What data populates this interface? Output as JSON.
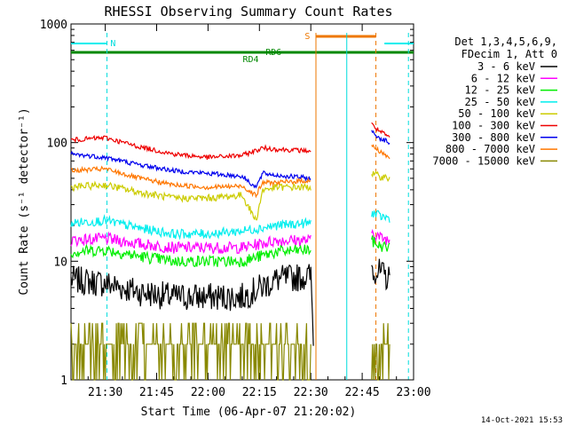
{
  "chart_data": {
    "type": "line",
    "title": "RHESSI Observing Summary Count Rates",
    "xlabel": "Start Time (06-Apr-07 21:20:02)",
    "ylabel": "Count Rate (s⁻¹ detector⁻¹)",
    "yscale": "log",
    "ylim": [
      1,
      1000
    ],
    "xlim_min": [
      0,
      100
    ],
    "x_ticks": [
      {
        "min": 10,
        "label": "21:30"
      },
      {
        "min": 25,
        "label": "21:45"
      },
      {
        "min": 40,
        "label": "22:00"
      },
      {
        "min": 55,
        "label": "22:15"
      },
      {
        "min": 70,
        "label": "22:30"
      },
      {
        "min": 85,
        "label": "22:45"
      },
      {
        "min": 100,
        "label": "23:00"
      }
    ],
    "y_ticks": [
      {
        "value": 1,
        "label": "1"
      },
      {
        "value": 10,
        "label": "10"
      },
      {
        "value": 100,
        "label": "100"
      },
      {
        "value": 1000,
        "label": "1000"
      }
    ],
    "legend_header": [
      "Det 1,3,4,5,6,9,",
      "FDecim 1, Att 0"
    ],
    "series": [
      {
        "name": "3 - 6 keV",
        "color": "#000000",
        "points": [
          [
            0,
            7
          ],
          [
            10,
            6.5
          ],
          [
            20,
            5.5
          ],
          [
            30,
            5
          ],
          [
            40,
            5
          ],
          [
            50,
            5
          ],
          [
            60,
            7
          ],
          [
            70,
            7.5
          ],
          [
            70.8,
            2.2
          ],
          [
            84,
            null
          ],
          [
            87.5,
            9
          ],
          [
            90,
            8
          ],
          [
            93,
            7
          ]
        ]
      },
      {
        "name": "6 - 12 keV",
        "color": "#ff00ff",
        "points": [
          [
            0,
            15
          ],
          [
            10,
            15.5
          ],
          [
            20,
            14
          ],
          [
            30,
            13
          ],
          [
            40,
            13
          ],
          [
            50,
            13
          ],
          [
            60,
            15
          ],
          [
            70,
            15
          ],
          [
            70.8,
            null
          ],
          [
            87.5,
            18
          ],
          [
            90,
            16
          ],
          [
            93,
            15
          ]
        ]
      },
      {
        "name": "12 - 25 keV",
        "color": "#00ee00",
        "points": [
          [
            0,
            12
          ],
          [
            10,
            12.5
          ],
          [
            20,
            11
          ],
          [
            30,
            10
          ],
          [
            40,
            10
          ],
          [
            50,
            10
          ],
          [
            60,
            12
          ],
          [
            70,
            12.5
          ],
          [
            70.8,
            null
          ],
          [
            87.5,
            15
          ],
          [
            90,
            13.5
          ],
          [
            93,
            13
          ]
        ]
      },
      {
        "name": "25 - 50 keV",
        "color": "#00eeee",
        "points": [
          [
            0,
            21
          ],
          [
            10,
            22
          ],
          [
            20,
            19
          ],
          [
            30,
            17
          ],
          [
            40,
            17
          ],
          [
            50,
            18
          ],
          [
            60,
            20
          ],
          [
            70,
            21
          ],
          [
            70.8,
            null
          ],
          [
            87.5,
            26
          ],
          [
            90,
            24
          ],
          [
            93,
            23
          ]
        ]
      },
      {
        "name": "50 - 100 keV",
        "color": "#cccc00",
        "points": [
          [
            0,
            42
          ],
          [
            10,
            44
          ],
          [
            20,
            38
          ],
          [
            30,
            34
          ],
          [
            40,
            34
          ],
          [
            50,
            36
          ],
          [
            54,
            22
          ],
          [
            56,
            40
          ],
          [
            60,
            42
          ],
          [
            70,
            42
          ],
          [
            70.8,
            null
          ],
          [
            87.5,
            55
          ],
          [
            90,
            52
          ],
          [
            93,
            50
          ]
        ]
      },
      {
        "name": "100 - 300 keV",
        "color": "#ee0000",
        "points": [
          [
            0,
            105
          ],
          [
            10,
            110
          ],
          [
            20,
            92
          ],
          [
            30,
            80
          ],
          [
            40,
            75
          ],
          [
            50,
            78
          ],
          [
            56,
            90
          ],
          [
            60,
            88
          ],
          [
            70,
            85
          ],
          [
            70.8,
            null
          ],
          [
            87.5,
            145
          ],
          [
            90,
            125
          ],
          [
            93,
            110
          ]
        ]
      },
      {
        "name": "300 - 800 keV",
        "color": "#0000ee",
        "points": [
          [
            0,
            80
          ],
          [
            10,
            75
          ],
          [
            20,
            65
          ],
          [
            30,
            58
          ],
          [
            40,
            55
          ],
          [
            50,
            52
          ],
          [
            54,
            42
          ],
          [
            56,
            55
          ],
          [
            60,
            53
          ],
          [
            70,
            50
          ],
          [
            70.8,
            null
          ],
          [
            87.5,
            125
          ],
          [
            90,
            110
          ],
          [
            93,
            100
          ]
        ]
      },
      {
        "name": "800 - 7000 keV",
        "color": "#ff7700",
        "points": [
          [
            0,
            58
          ],
          [
            10,
            60
          ],
          [
            20,
            50
          ],
          [
            30,
            44
          ],
          [
            40,
            42
          ],
          [
            50,
            43
          ],
          [
            54,
            36
          ],
          [
            56,
            46
          ],
          [
            60,
            46
          ],
          [
            70,
            48
          ],
          [
            70.8,
            null
          ],
          [
            87.5,
            95
          ],
          [
            90,
            85
          ],
          [
            93,
            75
          ]
        ]
      },
      {
        "name": "7000 - 15000 keV",
        "color": "#888800",
        "points": [
          [
            0,
            1.5
          ],
          [
            10,
            1.6
          ],
          [
            20,
            1.4
          ],
          [
            30,
            1.3
          ],
          [
            40,
            1.3
          ],
          [
            50,
            1.4
          ],
          [
            60,
            1.5
          ],
          [
            70,
            1.6
          ],
          [
            70.8,
            null
          ],
          [
            87.5,
            1.5
          ],
          [
            93,
            1.5
          ]
        ]
      }
    ],
    "annotations": [
      {
        "text": "N",
        "color": "#00dddd"
      },
      {
        "text": "S",
        "color": "#ee7700"
      },
      {
        "text": "RD6",
        "color": "#008800"
      },
      {
        "text": "RD4",
        "color": "#008800"
      }
    ],
    "timestamp": "14-Oct-2021 15:53"
  }
}
